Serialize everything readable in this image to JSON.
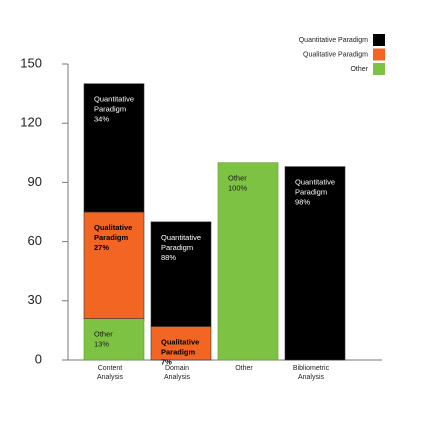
{
  "chart_data": {
    "type": "stacked_bar",
    "categories": [
      "Content Analysis",
      "Domain Analysis",
      "Other",
      "Bibliometric Analysis"
    ],
    "series": [
      {
        "name": "Quantitative Paradigm",
        "color": "#000000",
        "label_color": "#ffffff",
        "label_bold": false,
        "values": [
          65,
          53,
          null,
          98
        ],
        "segment_labels": [
          [
            "Quantitative",
            "Paradigm",
            "34%"
          ],
          [
            "Quantitative",
            "Paradigm",
            "88%"
          ],
          null,
          [
            "Quantitative",
            "Paradigm",
            "98%"
          ]
        ]
      },
      {
        "name": "Qualitative Paradigm",
        "color": "#f26522",
        "label_color": "#000000",
        "label_bold": true,
        "values": [
          54,
          17,
          null,
          null
        ],
        "segment_labels": [
          [
            "Qualitative",
            "Paradigm",
            "27%"
          ],
          [
            "Qualitative",
            "Paradigm",
            "7%"
          ],
          null,
          null
        ]
      },
      {
        "name": "Other",
        "color": "#7dc242",
        "label_color": "#1a1a1a",
        "label_bold": false,
        "values": [
          21,
          null,
          100,
          null
        ],
        "segment_labels": [
          [
            "Other",
            "13%"
          ],
          null,
          [
            "Other",
            "100%"
          ],
          null
        ]
      }
    ],
    "ylim": [
      0,
      150
    ],
    "yticks": [
      0,
      30,
      60,
      90,
      120,
      150
    ],
    "legend": "top-right"
  }
}
